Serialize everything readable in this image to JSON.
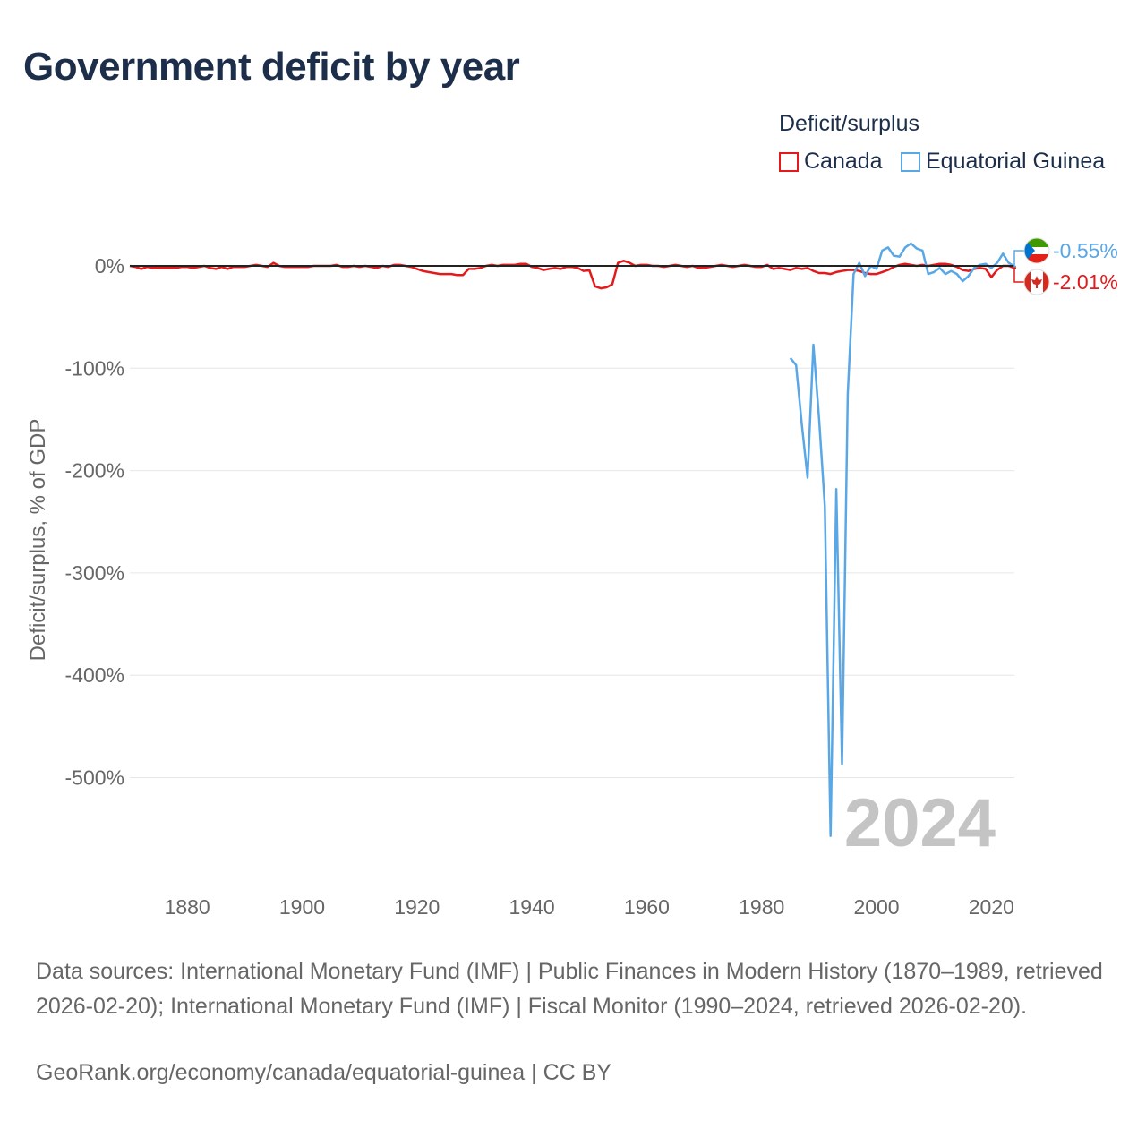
{
  "title": "Government deficit by year",
  "legend": {
    "title": "Deficit/surplus",
    "items": [
      {
        "label": "Canada",
        "color": "#e31a1c"
      },
      {
        "label": "Equatorial Guinea",
        "color": "#5aa7e6"
      }
    ]
  },
  "footer": {
    "sources": "Data sources: International Monetary Fund (IMF) | Public Finances in Modern History (1870–1989, retrieved 2026-02-20); International Monetary Fund (IMF) | Fiscal Monitor (1990–2024, retrieved 2026-02-20).",
    "credit": "GeoRank.org/economy/canada/equatorial-guinea | CC BY"
  },
  "chart_data": {
    "type": "line",
    "title": "Government deficit by year",
    "ylabel": "Deficit/surplus, % of GDP",
    "xlabel": "",
    "xlim": [
      1870,
      2024
    ],
    "ylim": [
      -600,
      30
    ],
    "x_ticks": [
      1880,
      1900,
      1920,
      1940,
      1960,
      1980,
      2000,
      2020
    ],
    "y_ticks": [
      0,
      -100,
      -200,
      -300,
      -400,
      -500
    ],
    "y_tick_labels": [
      "0%",
      "-100%",
      "-200%",
      "-300%",
      "-400%",
      "-500%"
    ],
    "year_watermark": "2024",
    "series": [
      {
        "name": "Canada",
        "color": "#e31a1c",
        "end_label": "-2.01%",
        "flag": "canada-flag",
        "points": [
          [
            1870,
            0
          ],
          [
            1871,
            -1
          ],
          [
            1872,
            -3
          ],
          [
            1873,
            -1
          ],
          [
            1874,
            -2
          ],
          [
            1875,
            -2
          ],
          [
            1876,
            -2
          ],
          [
            1877,
            -2
          ],
          [
            1878,
            -2
          ],
          [
            1879,
            -1
          ],
          [
            1880,
            -1
          ],
          [
            1881,
            -2
          ],
          [
            1882,
            -1
          ],
          [
            1883,
            0
          ],
          [
            1884,
            -2
          ],
          [
            1885,
            -3
          ],
          [
            1886,
            -1
          ],
          [
            1887,
            -3
          ],
          [
            1888,
            -1
          ],
          [
            1889,
            -1
          ],
          [
            1890,
            -1
          ],
          [
            1891,
            0
          ],
          [
            1892,
            1
          ],
          [
            1893,
            0
          ],
          [
            1894,
            -1
          ],
          [
            1895,
            3
          ],
          [
            1896,
            0
          ],
          [
            1897,
            -1
          ],
          [
            1898,
            -1
          ],
          [
            1899,
            -1
          ],
          [
            1900,
            -1
          ],
          [
            1901,
            -1
          ],
          [
            1902,
            0
          ],
          [
            1903,
            0
          ],
          [
            1904,
            0
          ],
          [
            1905,
            0
          ],
          [
            1906,
            1
          ],
          [
            1907,
            -1
          ],
          [
            1908,
            -1
          ],
          [
            1909,
            0
          ],
          [
            1910,
            -1
          ],
          [
            1911,
            0
          ],
          [
            1912,
            -1
          ],
          [
            1913,
            -2
          ],
          [
            1914,
            0
          ],
          [
            1915,
            -1
          ],
          [
            1916,
            1
          ],
          [
            1917,
            1
          ],
          [
            1918,
            0
          ],
          [
            1919,
            -1
          ],
          [
            1920,
            -3
          ],
          [
            1921,
            -5
          ],
          [
            1922,
            -6
          ],
          [
            1923,
            -7
          ],
          [
            1924,
            -8
          ],
          [
            1925,
            -8
          ],
          [
            1926,
            -8
          ],
          [
            1927,
            -9
          ],
          [
            1928,
            -9
          ],
          [
            1929,
            -3
          ],
          [
            1930,
            -3
          ],
          [
            1931,
            -2
          ],
          [
            1932,
            0
          ],
          [
            1933,
            1
          ],
          [
            1934,
            0
          ],
          [
            1935,
            1
          ],
          [
            1936,
            1
          ],
          [
            1937,
            1
          ],
          [
            1938,
            2
          ],
          [
            1939,
            2
          ],
          [
            1940,
            -1
          ],
          [
            1941,
            -2
          ],
          [
            1942,
            -4
          ],
          [
            1943,
            -3
          ],
          [
            1944,
            -2
          ],
          [
            1945,
            -3
          ],
          [
            1946,
            -1
          ],
          [
            1947,
            -1
          ],
          [
            1948,
            -2
          ],
          [
            1949,
            -5
          ],
          [
            1950,
            -4
          ],
          [
            1951,
            -20
          ],
          [
            1952,
            -22
          ],
          [
            1953,
            -21
          ],
          [
            1954,
            -18
          ],
          [
            1955,
            3
          ],
          [
            1956,
            5
          ],
          [
            1957,
            3
          ],
          [
            1958,
            0
          ],
          [
            1959,
            1
          ],
          [
            1960,
            1
          ],
          [
            1961,
            0
          ],
          [
            1962,
            0
          ],
          [
            1963,
            -1
          ],
          [
            1964,
            0
          ],
          [
            1965,
            1
          ],
          [
            1966,
            0
          ],
          [
            1967,
            -1
          ],
          [
            1968,
            0
          ],
          [
            1969,
            -2
          ],
          [
            1970,
            -2
          ],
          [
            1971,
            -1
          ],
          [
            1972,
            0
          ],
          [
            1973,
            1
          ],
          [
            1974,
            0
          ],
          [
            1975,
            -1
          ],
          [
            1976,
            0
          ],
          [
            1977,
            1
          ],
          [
            1978,
            0
          ],
          [
            1979,
            -1
          ],
          [
            1980,
            -1
          ],
          [
            1981,
            1
          ],
          [
            1982,
            -3
          ],
          [
            1983,
            -2
          ],
          [
            1984,
            -3
          ],
          [
            1985,
            -4
          ],
          [
            1986,
            -2
          ],
          [
            1987,
            -3
          ],
          [
            1988,
            -2
          ],
          [
            1989,
            -5
          ],
          [
            1990,
            -7
          ],
          [
            1991,
            -7
          ],
          [
            1992,
            -8
          ],
          [
            1993,
            -6
          ],
          [
            1994,
            -5
          ],
          [
            1995,
            -4
          ],
          [
            1996,
            -4
          ],
          [
            1997,
            -5
          ],
          [
            1998,
            -7
          ],
          [
            1999,
            -8
          ],
          [
            2000,
            -8
          ],
          [
            2001,
            -6
          ],
          [
            2002,
            -4
          ],
          [
            2003,
            -1
          ],
          [
            2004,
            1
          ],
          [
            2005,
            2
          ],
          [
            2006,
            1
          ],
          [
            2007,
            0
          ],
          [
            2008,
            1
          ],
          [
            2009,
            0
          ],
          [
            2010,
            1
          ],
          [
            2011,
            2
          ],
          [
            2012,
            2
          ],
          [
            2013,
            1
          ],
          [
            2014,
            -1
          ],
          [
            2015,
            -4
          ],
          [
            2016,
            -5
          ],
          [
            2017,
            -3
          ],
          [
            2018,
            -2
          ],
          [
            2019,
            -3
          ],
          [
            2020,
            -11
          ],
          [
            2021,
            -4
          ],
          [
            2022,
            0
          ],
          [
            2023,
            0
          ],
          [
            2024,
            -2.01
          ]
        ]
      },
      {
        "name": "Equatorial Guinea",
        "color": "#5aa7e6",
        "end_label": "-0.55%",
        "flag": "equatorial-guinea-flag",
        "points": [
          [
            1985,
            -90
          ],
          [
            1986,
            -97
          ],
          [
            1987,
            -155
          ],
          [
            1988,
            -207
          ],
          [
            1989,
            -77
          ],
          [
            1990,
            -150
          ],
          [
            1991,
            -235
          ],
          [
            1992,
            -557
          ],
          [
            1993,
            -218
          ],
          [
            1994,
            -487
          ],
          [
            1995,
            -125
          ],
          [
            1996,
            -8
          ],
          [
            1997,
            3
          ],
          [
            1998,
            -10
          ],
          [
            1999,
            0
          ],
          [
            2000,
            -3
          ],
          [
            2001,
            15
          ],
          [
            2002,
            18
          ],
          [
            2003,
            10
          ],
          [
            2004,
            9
          ],
          [
            2005,
            18
          ],
          [
            2006,
            22
          ],
          [
            2007,
            17
          ],
          [
            2008,
            15
          ],
          [
            2009,
            -8
          ],
          [
            2010,
            -6
          ],
          [
            2011,
            -2
          ],
          [
            2012,
            -8
          ],
          [
            2013,
            -5
          ],
          [
            2014,
            -8
          ],
          [
            2015,
            -15
          ],
          [
            2016,
            -10
          ],
          [
            2017,
            -2
          ],
          [
            2018,
            1
          ],
          [
            2019,
            2
          ],
          [
            2020,
            -2
          ],
          [
            2021,
            3
          ],
          [
            2022,
            12
          ],
          [
            2023,
            3
          ],
          [
            2024,
            -0.55
          ]
        ]
      }
    ]
  }
}
